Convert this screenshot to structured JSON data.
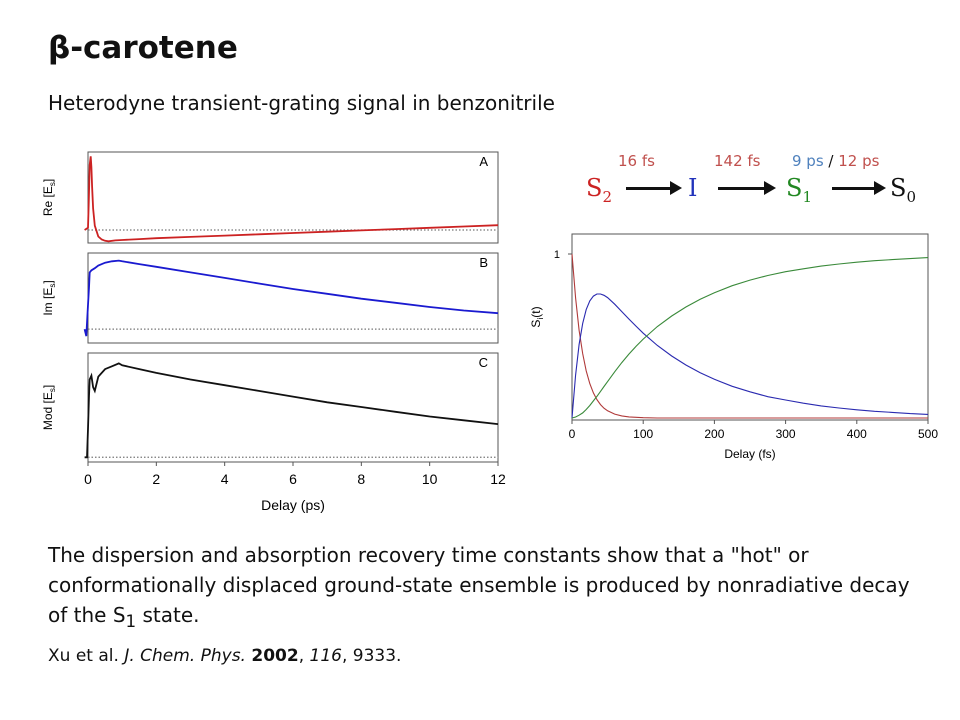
{
  "slide": {
    "title": "β-carotene",
    "subtitle": "Heterodyne transient-grating signal in benzonitrile",
    "body_text_before": "The dispersion and absorption recovery time constants show that a \"hot\" or conformationally displaced ground-state ensemble is produced by nonradiative decay of the S",
    "body_text_sub": "1",
    "body_text_after": " state.",
    "citation": {
      "authors": "Xu et al. ",
      "journal": "J. Chem. Phys.",
      "sep1": " ",
      "year": "2002",
      "sep2": ", ",
      "volume": "116",
      "sep3": ", ",
      "pages": "9333."
    }
  },
  "scheme": {
    "time_constants": [
      {
        "text": "16 fs",
        "color": "#c0504d"
      },
      {
        "text": "142 fs",
        "color": "#c0504d"
      },
      {
        "text": "9 ps",
        "color": "#4f81bd"
      },
      {
        "text": " / ",
        "color": "#111111"
      },
      {
        "text": "12 ps",
        "color": "#c0504d"
      }
    ],
    "species": [
      {
        "label": "S",
        "sub": "2",
        "color": "#cc2222"
      },
      {
        "label": "I",
        "sub": "",
        "color": "#2233bb"
      },
      {
        "label": "S",
        "sub": "1",
        "color": "#228822"
      },
      {
        "label": "S",
        "sub": "0",
        "color": "#111111"
      }
    ]
  },
  "chart_data": [
    {
      "type": "line",
      "xlabel": "Delay (ps)",
      "xlim": [
        0,
        12
      ],
      "xticks": [
        "0",
        "2",
        "4",
        "6",
        "8",
        "10",
        "12"
      ],
      "panels": [
        {
          "letter": "A",
          "ylabel_main": "Re [E",
          "ylabel_sub": "s",
          "ylabel_close": "]",
          "color": "#cc2222",
          "baseline": 0,
          "ylim": [
            -0.3,
            1.8
          ],
          "x": [
            -0.1,
            0,
            0.02,
            0.05,
            0.08,
            0.1,
            0.12,
            0.15,
            0.2,
            0.3,
            0.4,
            0.5,
            0.6,
            0.8,
            1,
            1.5,
            2,
            3,
            4,
            5,
            6,
            7,
            8,
            9,
            10,
            11,
            12
          ],
          "y": [
            0,
            0.05,
            0.6,
            1.5,
            1.7,
            1.45,
            1.0,
            0.5,
            0.1,
            -0.15,
            -0.22,
            -0.25,
            -0.26,
            -0.24,
            -0.23,
            -0.21,
            -0.19,
            -0.16,
            -0.13,
            -0.1,
            -0.07,
            -0.04,
            -0.01,
            0.02,
            0.05,
            0.08,
            0.11
          ]
        },
        {
          "letter": "B",
          "ylabel_main": "Im [E",
          "ylabel_sub": "s",
          "ylabel_close": "]",
          "color": "#1a1ad0",
          "baseline": 0,
          "ylim": [
            -0.2,
            1.1
          ],
          "x": [
            -0.1,
            -0.05,
            0,
            0.03,
            0.05,
            0.1,
            0.2,
            0.3,
            0.5,
            0.7,
            0.9,
            1,
            1.5,
            2,
            3,
            4,
            5,
            6,
            7,
            8,
            9,
            10,
            11,
            12
          ],
          "y": [
            0,
            -0.1,
            0.35,
            0.6,
            0.82,
            0.85,
            0.88,
            0.92,
            0.96,
            0.98,
            0.99,
            0.98,
            0.94,
            0.9,
            0.82,
            0.74,
            0.66,
            0.58,
            0.51,
            0.44,
            0.38,
            0.32,
            0.27,
            0.23
          ]
        },
        {
          "letter": "C",
          "ylabel_main": "Mod [E",
          "ylabel_sub": "s",
          "ylabel_close": "]",
          "color": "#111111",
          "baseline": 0,
          "ylim": [
            -0.05,
            1.1
          ],
          "x": [
            -0.1,
            -0.03,
            0,
            0.03,
            0.05,
            0.1,
            0.15,
            0.2,
            0.3,
            0.5,
            0.7,
            0.9,
            1,
            1.5,
            2,
            3,
            4,
            5,
            6,
            7,
            8,
            9,
            10,
            11,
            12
          ],
          "y": [
            0,
            0,
            0.3,
            0.65,
            0.82,
            0.86,
            0.74,
            0.7,
            0.85,
            0.93,
            0.96,
            0.99,
            0.97,
            0.93,
            0.89,
            0.82,
            0.76,
            0.7,
            0.64,
            0.58,
            0.53,
            0.48,
            0.43,
            0.39,
            0.35
          ]
        }
      ]
    },
    {
      "type": "line",
      "xlabel": "Delay (fs)",
      "ylabel_main": "S",
      "ylabel_sub": "i",
      "ylabel_close": "(t)",
      "xlim": [
        0,
        500
      ],
      "ylim": [
        0,
        1
      ],
      "xticks": [
        "0",
        "100",
        "200",
        "300",
        "400",
        "500"
      ],
      "yticks": [
        "1"
      ],
      "x": [
        0,
        5,
        10,
        15,
        20,
        25,
        30,
        35,
        40,
        45,
        50,
        60,
        70,
        80,
        90,
        100,
        120,
        140,
        160,
        180,
        200,
        225,
        250,
        275,
        300,
        325,
        350,
        375,
        400,
        425,
        450,
        475,
        500
      ],
      "series": [
        {
          "color": "#b03a3a",
          "y": [
            1,
            0.732,
            0.535,
            0.392,
            0.287,
            0.21,
            0.153,
            0.112,
            0.082,
            0.06,
            0.044,
            0.024,
            0.013,
            0.007,
            0.004,
            0.002,
            0,
            0,
            0,
            0,
            0,
            0,
            0,
            0,
            0,
            0,
            0,
            0,
            0,
            0,
            0,
            0,
            0
          ]
        },
        {
          "color": "#2a2ab0",
          "y": [
            0,
            0.262,
            0.448,
            0.577,
            0.661,
            0.714,
            0.743,
            0.756,
            0.756,
            0.748,
            0.734,
            0.694,
            0.649,
            0.603,
            0.559,
            0.517,
            0.442,
            0.378,
            0.323,
            0.276,
            0.236,
            0.193,
            0.16,
            0.13,
            0.11,
            0.09,
            0.074,
            0.061,
            0.05,
            0.041,
            0.034,
            0.027,
            0.022
          ]
        },
        {
          "color": "#3a8a3a",
          "y": [
            0,
            0.006,
            0.017,
            0.031,
            0.052,
            0.076,
            0.104,
            0.132,
            0.162,
            0.192,
            0.222,
            0.282,
            0.338,
            0.39,
            0.437,
            0.481,
            0.558,
            0.622,
            0.677,
            0.724,
            0.764,
            0.807,
            0.841,
            0.869,
            0.892,
            0.91,
            0.926,
            0.939,
            0.95,
            0.959,
            0.966,
            0.972,
            0.978
          ]
        }
      ]
    }
  ]
}
